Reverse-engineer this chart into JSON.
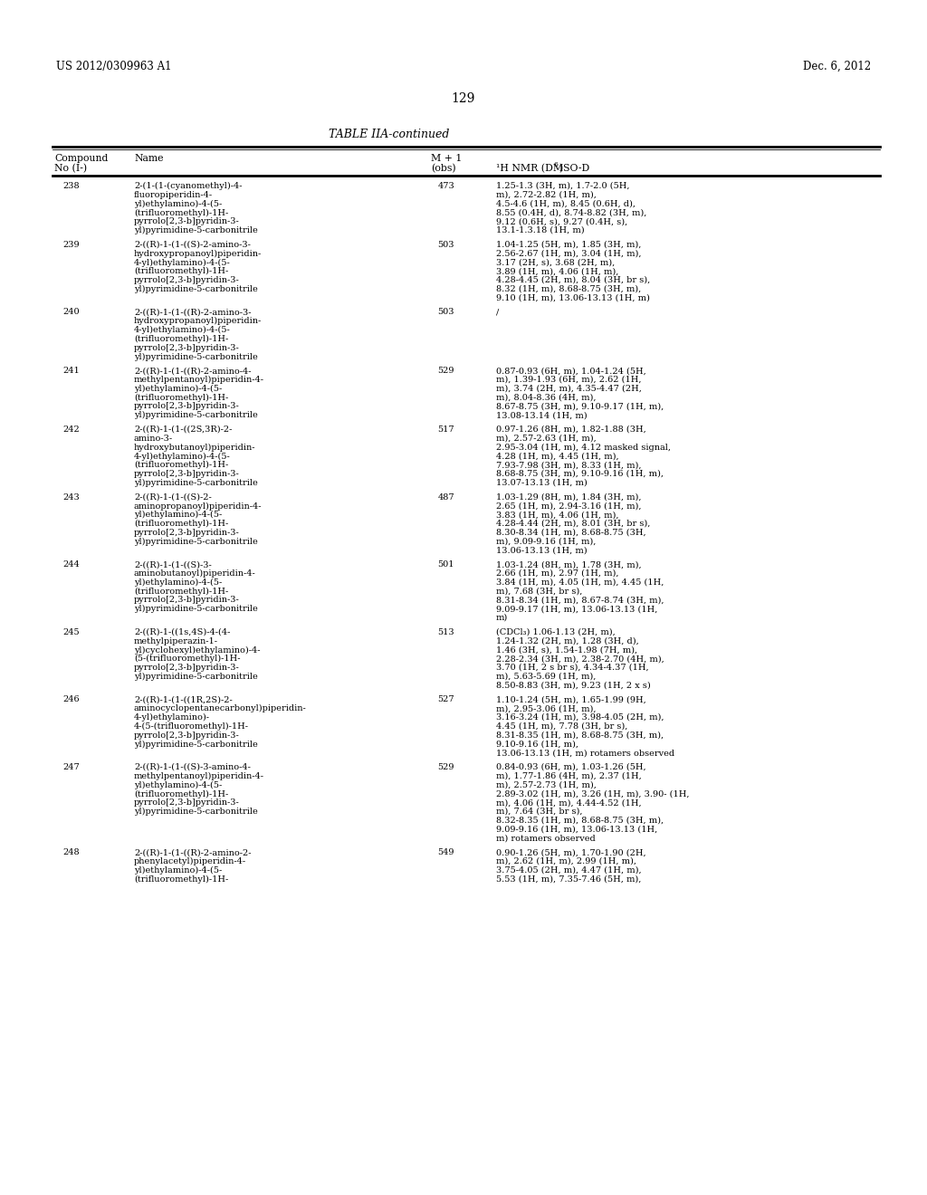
{
  "page_header_left": "US 2012/0309963 A1",
  "page_header_right": "Dec. 6, 2012",
  "page_number": "129",
  "table_title": "TABLE IIA-continued",
  "background_color": "#ffffff",
  "text_color": "#000000",
  "rows": [
    {
      "no": "238",
      "name": "2-(1-(1-(cyanomethyl)-4-\nfluoropiperidin-4-\nyl)ethylamino)-4-(5-\n(trifluoromethyl)-1H-\npyrrolo[2,3-b]pyridin-3-\nyl)pyrimidine-5-carbonitrile",
      "mass": "473",
      "nmr": "1.25-1.3 (3H, m), 1.7-2.0 (5H,\nm), 2.72-2.82 (1H, m),\n4.5-4.6 (1H, m), 8.45 (0.6H, d),\n8.55 (0.4H, d), 8.74-8.82 (3H, m),\n9.12 (0.6H, s), 9.27 (0.4H, s),\n13.1-1.3.18 (1H, m)"
    },
    {
      "no": "239",
      "name": "2-((R)-1-(1-((S)-2-amino-3-\nhydroxypropanoyl)piperidin-\n4-yl)ethylamino)-4-(5-\n(trifluoromethyl)-1H-\npyrrolo[2,3-b]pyridin-3-\nyl)pyrimidine-5-carbonitrile",
      "mass": "503",
      "nmr": "1.04-1.25 (5H, m), 1.85 (3H, m),\n2.56-2.67 (1H, m), 3.04 (1H, m),\n3.17 (2H, s), 3.68 (2H, m),\n3.89 (1H, m), 4.06 (1H, m),\n4.28-4.45 (2H, m), 8.04 (3H, br s),\n8.32 (1H, m), 8.68-8.75 (3H, m),\n9.10 (1H, m), 13.06-13.13 (1H, m)"
    },
    {
      "no": "240",
      "name": "2-((R)-1-(1-((R)-2-amino-3-\nhydroxypropanoyl)piperidin-\n4-yl)ethylamino)-4-(5-\n(trifluoromethyl)-1H-\npyrrolo[2,3-b]pyridin-3-\nyl)pyrimidine-5-carbonitrile",
      "mass": "503",
      "nmr": "/"
    },
    {
      "no": "241",
      "name": "2-((R)-1-(1-((R)-2-amino-4-\nmethylpentanoyl)piperidin-4-\nyl)ethylamino)-4-(5-\n(trifluoromethyl)-1H-\npyrrolo[2,3-b]pyridin-3-\nyl)pyrimidine-5-carbonitrile",
      "mass": "529",
      "nmr": "0.87-0.93 (6H, m), 1.04-1.24 (5H,\nm), 1.39-1.93 (6H, m), 2.62 (1H,\nm), 3.74 (2H, m), 4.35-4.47 (2H,\nm), 8.04-8.36 (4H, m),\n8.67-8.75 (3H, m), 9.10-9.17 (1H, m),\n13.08-13.14 (1H, m)"
    },
    {
      "no": "242",
      "name": "2-((R)-1-(1-((2S,3R)-2-\namino-3-\nhydroxybutanoyl)piperidin-\n4-yl)ethylamino)-4-(5-\n(trifluoromethyl)-1H-\npyrrolo[2,3-b]pyridin-3-\nyl)pyrimidine-5-carbonitrile",
      "mass": "517",
      "nmr": "0.97-1.26 (8H, m), 1.82-1.88 (3H,\nm), 2.57-2.63 (1H, m),\n2.95-3.04 (1H, m), 4.12 masked signal,\n4.28 (1H, m), 4.45 (1H, m),\n7.93-7.98 (3H, m), 8.33 (1H, m),\n8.68-8.75 (3H, m), 9.10-9.16 (1H, m),\n13.07-13.13 (1H, m)"
    },
    {
      "no": "243",
      "name": "2-((R)-1-(1-((S)-2-\naminopropanoyl)piperidin-4-\nyl)ethylamino)-4-(5-\n(trifluoromethyl)-1H-\npyrrolo[2,3-b]pyridin-3-\nyl)pyrimidine-5-carbonitrile",
      "mass": "487",
      "nmr": "1.03-1.29 (8H, m), 1.84 (3H, m),\n2.65 (1H, m), 2.94-3.16 (1H, m),\n3.83 (1H, m), 4.06 (1H, m),\n4.28-4.44 (2H, m), 8.01 (3H, br s),\n8.30-8.34 (1H, m), 8.68-8.75 (3H,\nm), 9.09-9.16 (1H, m),\n13.06-13.13 (1H, m)"
    },
    {
      "no": "244",
      "name": "2-((R)-1-(1-((S)-3-\naminobutanoyl)piperidin-4-\nyl)ethylamino)-4-(5-\n(trifluoromethyl)-1H-\npyrrolo[2,3-b]pyridin-3-\nyl)pyrimidine-5-carbonitrile",
      "mass": "501",
      "nmr": "1.03-1.24 (8H, m), 1.78 (3H, m),\n2.66 (1H, m), 2.97 (1H, m),\n3.84 (1H, m), 4.05 (1H, m), 4.45 (1H,\nm), 7.68 (3H, br s),\n8.31-8.34 (1H, m), 8.67-8.74 (3H, m),\n9.09-9.17 (1H, m), 13.06-13.13 (1H,\nm)"
    },
    {
      "no": "245",
      "name": "2-((R)-1-((1s,4S)-4-(4-\nmethylpiperazin-1-\nyl)cyclohexyl)ethylamino)-4-\n(5-(trifluoromethyl)-1H-\npyrrolo[2,3-b]pyridin-3-\nyl)pyrimidine-5-carbonitrile",
      "mass": "513",
      "nmr": "(CDCl₃) 1.06-1.13 (2H, m),\n1.24-1.32 (2H, m), 1.28 (3H, d),\n1.46 (3H, s), 1.54-1.98 (7H, m),\n2.28-2.34 (3H, m), 2.38-2.70 (4H, m),\n3.70 (1H, 2 s br s), 4.34-4.37 (1H,\nm), 5.63-5.69 (1H, m),\n8.50-8.83 (3H, m), 9.23 (1H, 2 x s)"
    },
    {
      "no": "246",
      "name": "2-((R)-1-(1-((1R,2S)-2-\naminocyclopentanecarbonyl)piperidin-\n4-yl)ethylamino)-\n4-(5-(trifluoromethyl)-1H-\npyrrolo[2,3-b]pyridin-3-\nyl)pyrimidine-5-carbonitrile",
      "mass": "527",
      "nmr": "1.10-1.24 (5H, m), 1.65-1.99 (9H,\nm), 2.95-3.06 (1H, m),\n3.16-3.24 (1H, m), 3.98-4.05 (2H, m),\n4.45 (1H, m), 7.78 (3H, br s),\n8.31-8.35 (1H, m), 8.68-8.75 (3H, m),\n9.10-9.16 (1H, m),\n13.06-13.13 (1H, m) rotamers observed"
    },
    {
      "no": "247",
      "name": "2-((R)-1-(1-((S)-3-amino-4-\nmethylpentanoyl)piperidin-4-\nyl)ethylamino)-4-(5-\n(trifluoromethyl)-1H-\npyrrolo[2,3-b]pyridin-3-\nyl)pyrimidine-5-carbonitrile",
      "mass": "529",
      "nmr": "0.84-0.93 (6H, m), 1.03-1.26 (5H,\nm), 1.77-1.86 (4H, m), 2.37 (1H,\nm), 2.57-2.73 (1H, m),\n2.89-3.02 (1H, m), 3.26 (1H, m), 3.90- (1H,\nm), 4.06 (1H, m), 4.44-4.52 (1H,\nm), 7.64 (3H, br s),\n8.32-8.35 (1H, m), 8.68-8.75 (3H, m),\n9.09-9.16 (1H, m), 13.06-13.13 (1H,\nm) rotamers observed"
    },
    {
      "no": "248",
      "name": "2-((R)-1-(1-((R)-2-amino-2-\nphenylacetyl)piperidin-4-\nyl)ethylamino)-4-(5-\n(trifluoromethyl)-1H-",
      "mass": "549",
      "nmr": "0.90-1.26 (5H, m), 1.70-1.90 (2H,\nm), 2.62 (1H, m), 2.99 (1H, m),\n3.75-4.05 (2H, m), 4.47 (1H, m),\n5.53 (1H, m), 7.35-7.46 (5H, m),"
    }
  ]
}
